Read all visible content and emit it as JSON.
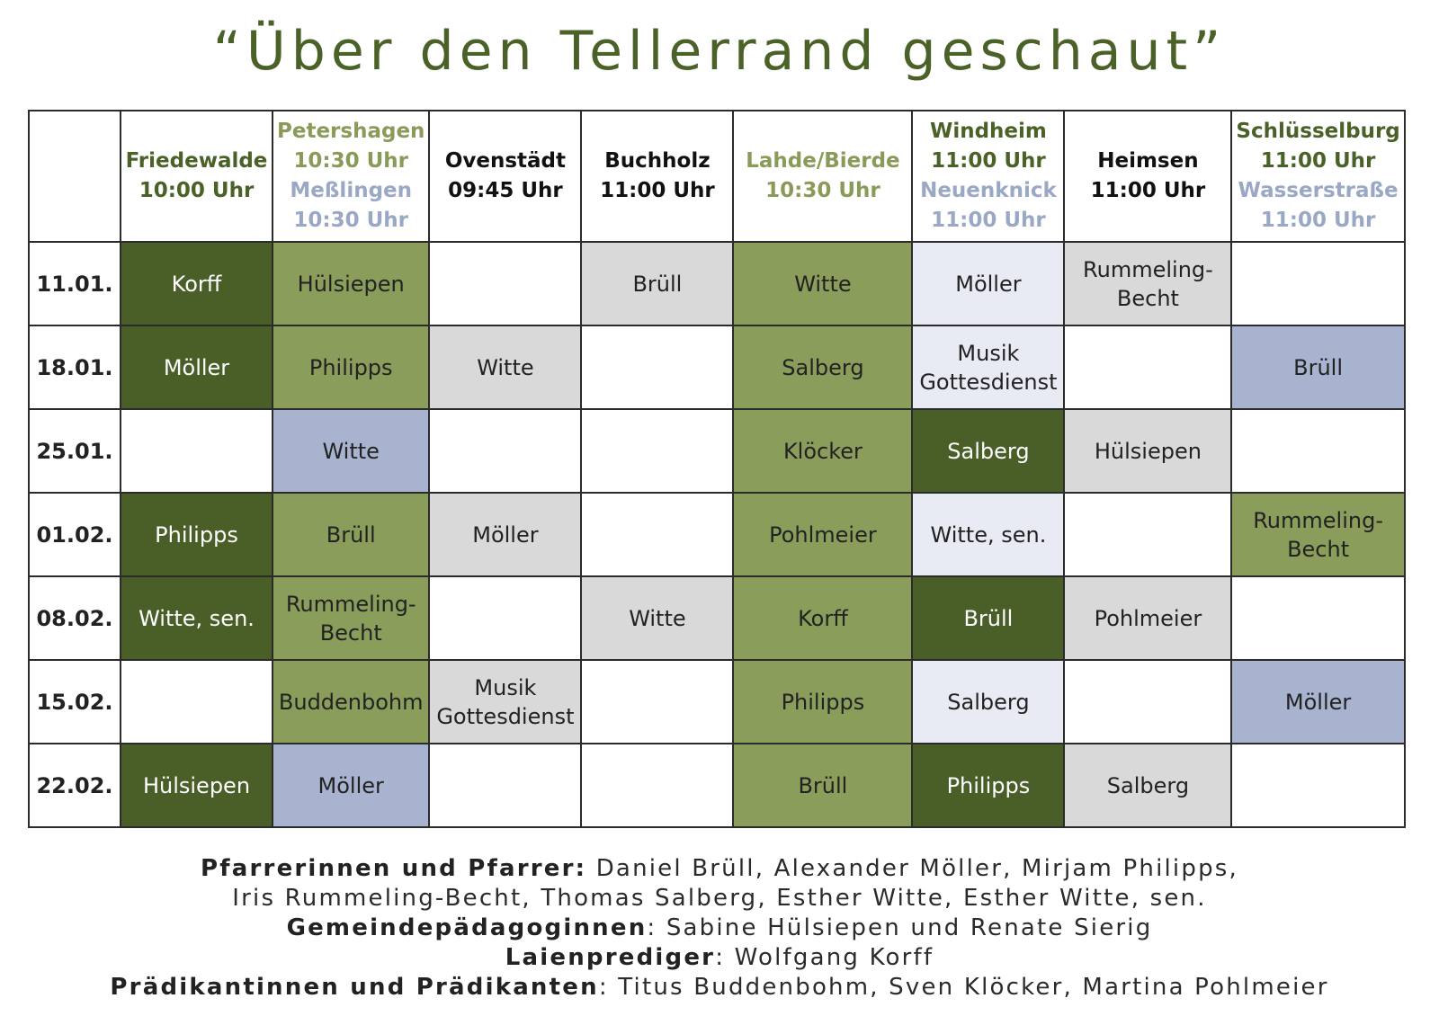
{
  "title": "“Über den Tellerrand geschaut”",
  "columns": [
    {
      "lines": [
        {
          "text": "Friedewalde",
          "color": "green"
        },
        {
          "text": "10:00 Uhr",
          "color": "green"
        }
      ]
    },
    {
      "lines": [
        {
          "text": "Petershagen",
          "color": "lgreen"
        },
        {
          "text": "10:30 Uhr",
          "color": "lgreen"
        },
        {
          "text": "Meßlingen",
          "color": "blue"
        },
        {
          "text": "10:30 Uhr",
          "color": "blue"
        }
      ]
    },
    {
      "lines": [
        {
          "text": "Ovenstädt",
          "color": "black"
        },
        {
          "text": "09:45 Uhr",
          "color": "black"
        }
      ]
    },
    {
      "lines": [
        {
          "text": "Buchholz",
          "color": "black"
        },
        {
          "text": "11:00 Uhr",
          "color": "black"
        }
      ]
    },
    {
      "lines": [
        {
          "text": "Lahde/Bierde",
          "color": "lgreen"
        },
        {
          "text": "10:30 Uhr",
          "color": "lgreen"
        }
      ]
    },
    {
      "lines": [
        {
          "text": "Windheim",
          "color": "green"
        },
        {
          "text": "11:00 Uhr",
          "color": "green"
        },
        {
          "text": "Neuenknick",
          "color": "blue"
        },
        {
          "text": "11:00 Uhr",
          "color": "blue"
        }
      ]
    },
    {
      "lines": [
        {
          "text": "Heimsen",
          "color": "black"
        },
        {
          "text": "11:00 Uhr",
          "color": "black"
        }
      ]
    },
    {
      "lines": [
        {
          "text": "Schlüsselburg",
          "color": "green"
        },
        {
          "text": "11:00 Uhr",
          "color": "green"
        },
        {
          "text": "Wasserstraße",
          "color": "blue"
        },
        {
          "text": "11:00 Uhr",
          "color": "blue"
        }
      ]
    }
  ],
  "rows": [
    {
      "date": "11.01.",
      "cells": [
        {
          "text": "Korff",
          "fill": "dark"
        },
        {
          "text": "Hülsiepen",
          "fill": "mid"
        },
        {
          "text": "",
          "fill": "white"
        },
        {
          "text": "Brüll",
          "fill": "grey"
        },
        {
          "text": "Witte",
          "fill": "mid"
        },
        {
          "text": "Möller",
          "fill": "pale"
        },
        {
          "text": "Rummeling-\nBecht",
          "fill": "grey"
        },
        {
          "text": "",
          "fill": "white"
        }
      ]
    },
    {
      "date": "18.01.",
      "cells": [
        {
          "text": "Möller",
          "fill": "dark"
        },
        {
          "text": "Philipps",
          "fill": "mid"
        },
        {
          "text": "Witte",
          "fill": "grey"
        },
        {
          "text": "",
          "fill": "white"
        },
        {
          "text": "Salberg",
          "fill": "mid"
        },
        {
          "text": "Musik\nGottesdienst",
          "fill": "pale"
        },
        {
          "text": "",
          "fill": "white"
        },
        {
          "text": "Brüll",
          "fill": "blue"
        }
      ]
    },
    {
      "date": "25.01.",
      "cells": [
        {
          "text": "",
          "fill": "white"
        },
        {
          "text": "Witte",
          "fill": "blue"
        },
        {
          "text": "",
          "fill": "white"
        },
        {
          "text": "",
          "fill": "white"
        },
        {
          "text": "Klöcker",
          "fill": "mid"
        },
        {
          "text": "Salberg",
          "fill": "dark"
        },
        {
          "text": "Hülsiepen",
          "fill": "grey"
        },
        {
          "text": "",
          "fill": "white"
        }
      ]
    },
    {
      "date": "01.02.",
      "cells": [
        {
          "text": "Philipps",
          "fill": "dark"
        },
        {
          "text": "Brüll",
          "fill": "mid"
        },
        {
          "text": "Möller",
          "fill": "grey"
        },
        {
          "text": "",
          "fill": "white"
        },
        {
          "text": "Pohlmeier",
          "fill": "mid"
        },
        {
          "text": "Witte, sen.",
          "fill": "pale"
        },
        {
          "text": "",
          "fill": "white"
        },
        {
          "text": "Rummeling-\nBecht",
          "fill": "mid"
        }
      ]
    },
    {
      "date": "08.02.",
      "cells": [
        {
          "text": "Witte, sen.",
          "fill": "dark"
        },
        {
          "text": "Rummeling-\nBecht",
          "fill": "mid"
        },
        {
          "text": "",
          "fill": "white"
        },
        {
          "text": "Witte",
          "fill": "grey"
        },
        {
          "text": "Korff",
          "fill": "mid"
        },
        {
          "text": "Brüll",
          "fill": "dark"
        },
        {
          "text": "Pohlmeier",
          "fill": "grey"
        },
        {
          "text": "",
          "fill": "white"
        }
      ]
    },
    {
      "date": "15.02.",
      "cells": [
        {
          "text": "",
          "fill": "white"
        },
        {
          "text": "Buddenbohm",
          "fill": "mid"
        },
        {
          "text": "Musik\nGottesdienst",
          "fill": "grey"
        },
        {
          "text": "",
          "fill": "white"
        },
        {
          "text": "Philipps",
          "fill": "mid"
        },
        {
          "text": "Salberg",
          "fill": "pale"
        },
        {
          "text": "",
          "fill": "white"
        },
        {
          "text": "Möller",
          "fill": "blue"
        }
      ]
    },
    {
      "date": "22.02.",
      "cells": [
        {
          "text": "Hülsiepen",
          "fill": "dark"
        },
        {
          "text": "Möller",
          "fill": "blue"
        },
        {
          "text": "",
          "fill": "white"
        },
        {
          "text": "",
          "fill": "white"
        },
        {
          "text": "Brüll",
          "fill": "mid"
        },
        {
          "text": "Philipps",
          "fill": "dark"
        },
        {
          "text": "Salberg",
          "fill": "grey"
        },
        {
          "text": "",
          "fill": "white"
        }
      ]
    }
  ],
  "footer": {
    "pfarrer_label": "Pfarrerinnen und Pfarrer:",
    "pfarrer_text_1": " Daniel Brüll, Alexander Möller, Mirjam Philipps,",
    "pfarrer_text_2": "Iris Rummeling-Becht, Thomas Salberg, Esther Witte, Esther Witte, sen.",
    "gemeinde_label": "Gemeindepädagoginnen",
    "gemeinde_text": ": Sabine Hülsiepen und Renate Sierig",
    "laien_label": "Laienprediger",
    "laien_text": ": Wolfgang Korff",
    "praedikant_label": "Prädikantinnen und Prädikanten",
    "praedikant_text": ": Titus Buddenbohm, Sven Klöcker, Martina Pohlmeier"
  },
  "colors": {
    "title": "#4a6127",
    "dark_green": "#4a5e27",
    "mid_green": "#8a9d5b",
    "grey": "#d9d9d9",
    "pale_blue": "#e8ebf4",
    "blue": "#a7b3cf"
  }
}
